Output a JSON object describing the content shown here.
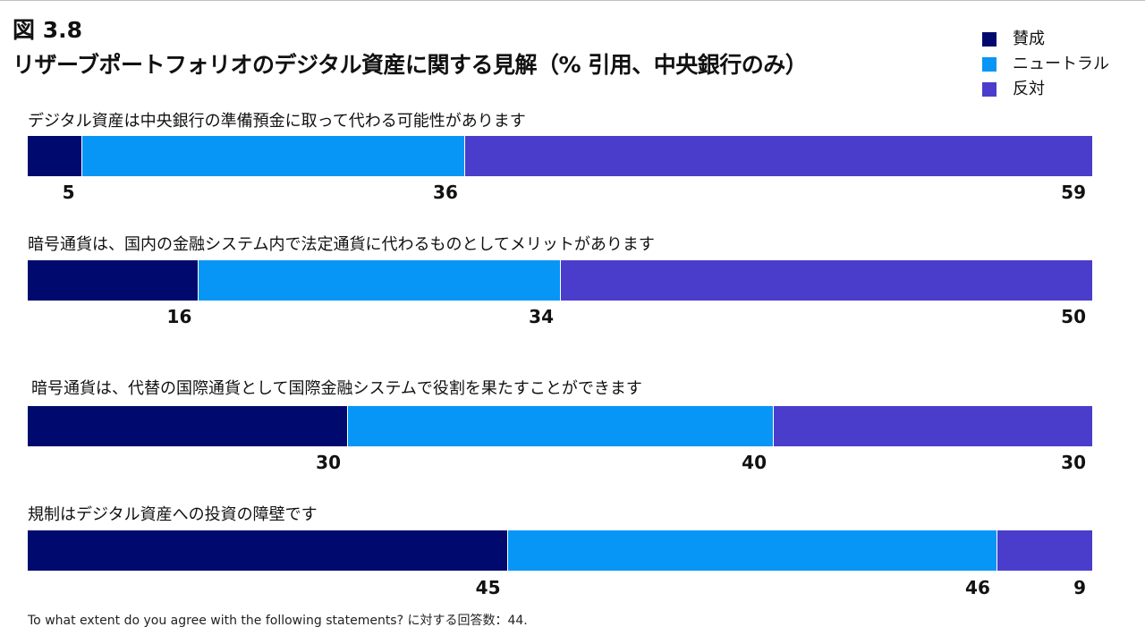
{
  "figure_number": "図 3.8",
  "title": "リザーブポートフォリオのデジタル資産に関する見解（% 引用、中央銀行のみ）",
  "footnote": "To what extent do you agree with the following statements? に対する回答数：44.",
  "colors": {
    "agree": "#000a6e",
    "neutral": "#0796f5",
    "disagree": "#4a3dcc"
  },
  "chart_data": {
    "type": "bar",
    "orientation": "horizontal",
    "stacked": true,
    "title": "リザーブポートフォリオのデジタル資産に関する見解（% 引用、中央銀行のみ）",
    "legend_position": "top-right",
    "categories": [
      "デジタル資産は中央銀行の準備預金に取って代わる可能性があります",
      "暗号通貨は、国内の金融システム内で法定通貨に代わるものとしてメリットがあります",
      "暗号通貨は、代替の国際通貨として国際金融システムで役割を果たすことができます",
      "規制はデジタル資産への投資の障壁です"
    ],
    "series": [
      {
        "name": "賛成",
        "values": [
          5,
          16,
          30,
          45
        ]
      },
      {
        "name": "ニュートラル",
        "values": [
          36,
          34,
          40,
          46
        ]
      },
      {
        "name": "反対",
        "values": [
          59,
          50,
          30,
          9
        ]
      }
    ],
    "xlim": [
      0,
      100
    ],
    "grid": false
  }
}
